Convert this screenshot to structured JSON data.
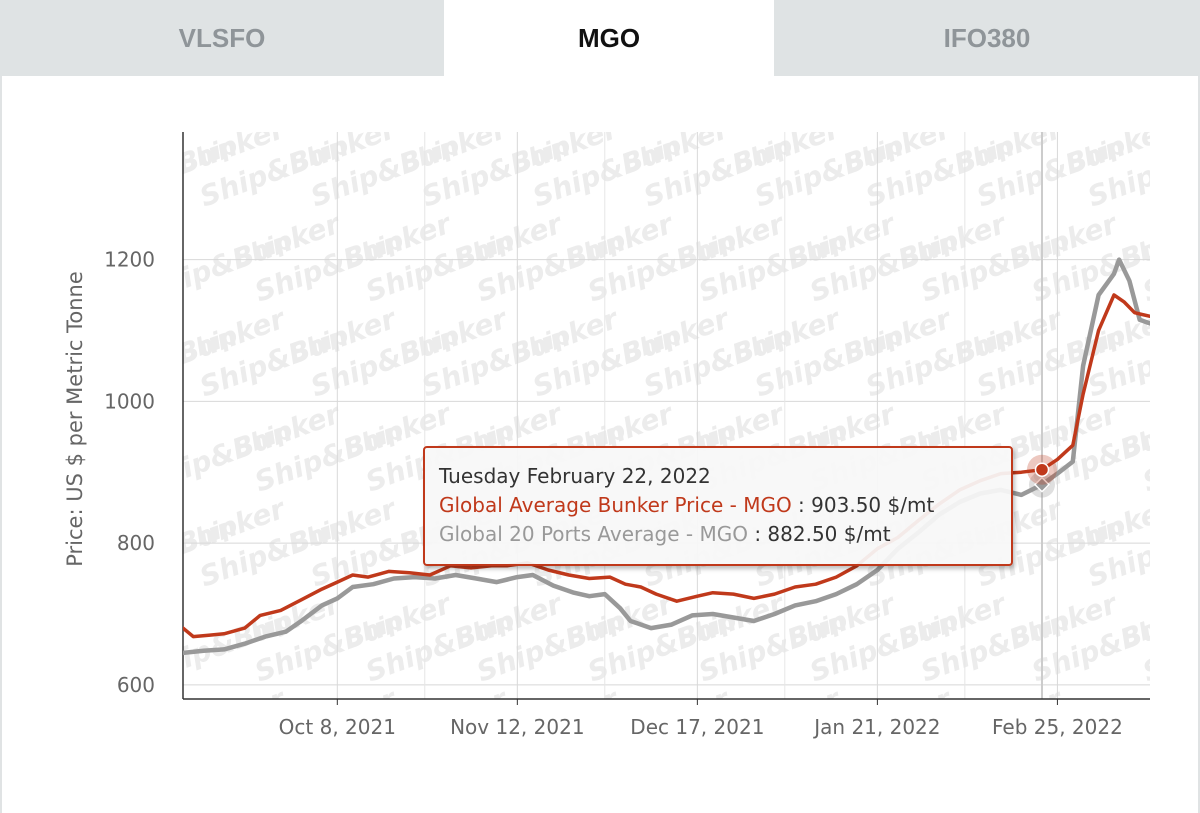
{
  "tabs": [
    {
      "label": "VLSFO",
      "active": false
    },
    {
      "label": "MGO",
      "active": true
    },
    {
      "label": "IFO380",
      "active": false
    }
  ],
  "watermark": {
    "text_top": "Ship",
    "text_bottom": "Bunker",
    "symbol": "&"
  },
  "colors": {
    "series1": "#c0391b",
    "series2": "#999999",
    "grid": "#d8d8d8",
    "crosshair": "#cccccc"
  },
  "tooltip": {
    "date": "Tuesday February 22, 2022",
    "series1_label": "Global Average Bunker Price - MGO",
    "series1_value": "903.50 $/mt",
    "series2_label": "Global 20 Ports Average - MGO",
    "series2_value": "882.50 $/mt",
    "separator": ":"
  },
  "chart_data": {
    "type": "line",
    "ylabel": "Price: US $ per Metric Tonne",
    "xlabel": "",
    "ylim": [
      580,
      1380
    ],
    "yticks": [
      600,
      800,
      1000,
      1200
    ],
    "xlim": [
      "2021-09-08",
      "2022-03-15"
    ],
    "xticks": [
      {
        "date": "2021-10-08",
        "label": "Oct 8, 2021"
      },
      {
        "date": "2021-11-12",
        "label": "Nov 12, 2021"
      },
      {
        "date": "2021-12-17",
        "label": "Dec 17, 2021"
      },
      {
        "date": "2022-01-21",
        "label": "Jan 21, 2022"
      },
      {
        "date": "2022-02-25",
        "label": "Feb 25, 2022"
      }
    ],
    "grid": true,
    "highlight_date": "2022-02-22",
    "series": [
      {
        "name": "Global Average Bunker Price - MGO",
        "color": "#c0391b",
        "points": [
          [
            "2021-09-08",
            680
          ],
          [
            "2021-09-10",
            668
          ],
          [
            "2021-09-13",
            670
          ],
          [
            "2021-09-16",
            672
          ],
          [
            "2021-09-20",
            680
          ],
          [
            "2021-09-23",
            698
          ],
          [
            "2021-09-27",
            705
          ],
          [
            "2021-10-01",
            720
          ],
          [
            "2021-10-05",
            735
          ],
          [
            "2021-10-08",
            745
          ],
          [
            "2021-10-11",
            755
          ],
          [
            "2021-10-14",
            752
          ],
          [
            "2021-10-18",
            760
          ],
          [
            "2021-10-22",
            758
          ],
          [
            "2021-10-26",
            755
          ],
          [
            "2021-10-30",
            768
          ],
          [
            "2021-11-03",
            765
          ],
          [
            "2021-11-07",
            768
          ],
          [
            "2021-11-10",
            768
          ],
          [
            "2021-11-14",
            772
          ],
          [
            "2021-11-18",
            762
          ],
          [
            "2021-11-22",
            755
          ],
          [
            "2021-11-26",
            750
          ],
          [
            "2021-11-30",
            752
          ],
          [
            "2021-12-03",
            742
          ],
          [
            "2021-12-06",
            738
          ],
          [
            "2021-12-09",
            728
          ],
          [
            "2021-12-13",
            718
          ],
          [
            "2021-12-17",
            725
          ],
          [
            "2021-12-20",
            730
          ],
          [
            "2021-12-24",
            728
          ],
          [
            "2021-12-28",
            722
          ],
          [
            "2022-01-01",
            728
          ],
          [
            "2022-01-05",
            738
          ],
          [
            "2022-01-09",
            742
          ],
          [
            "2022-01-13",
            752
          ],
          [
            "2022-01-17",
            768
          ],
          [
            "2022-01-21",
            792
          ],
          [
            "2022-01-25",
            808
          ],
          [
            "2022-01-29",
            832
          ],
          [
            "2022-02-02",
            855
          ],
          [
            "2022-02-06",
            875
          ],
          [
            "2022-02-10",
            888
          ],
          [
            "2022-02-14",
            898
          ],
          [
            "2022-02-18",
            900
          ],
          [
            "2022-02-22",
            903.5
          ],
          [
            "2022-02-25",
            918
          ],
          [
            "2022-02-28",
            938
          ],
          [
            "2022-03-02",
            1010
          ],
          [
            "2022-03-05",
            1100
          ],
          [
            "2022-03-08",
            1150
          ],
          [
            "2022-03-10",
            1140
          ],
          [
            "2022-03-12",
            1125
          ],
          [
            "2022-03-15",
            1120
          ]
        ]
      },
      {
        "name": "Global 20 Ports Average - MGO",
        "color": "#999999",
        "points": [
          [
            "2021-09-08",
            645
          ],
          [
            "2021-09-12",
            648
          ],
          [
            "2021-09-16",
            650
          ],
          [
            "2021-09-20",
            658
          ],
          [
            "2021-09-24",
            668
          ],
          [
            "2021-09-28",
            675
          ],
          [
            "2021-10-01",
            690
          ],
          [
            "2021-10-05",
            712
          ],
          [
            "2021-10-08",
            722
          ],
          [
            "2021-10-11",
            738
          ],
          [
            "2021-10-15",
            742
          ],
          [
            "2021-10-19",
            750
          ],
          [
            "2021-10-23",
            752
          ],
          [
            "2021-10-27",
            750
          ],
          [
            "2021-10-31",
            755
          ],
          [
            "2021-11-04",
            750
          ],
          [
            "2021-11-08",
            745
          ],
          [
            "2021-11-12",
            752
          ],
          [
            "2021-11-15",
            755
          ],
          [
            "2021-11-19",
            740
          ],
          [
            "2021-11-23",
            730
          ],
          [
            "2021-11-26",
            725
          ],
          [
            "2021-11-29",
            728
          ],
          [
            "2021-12-02",
            708
          ],
          [
            "2021-12-04",
            690
          ],
          [
            "2021-12-08",
            680
          ],
          [
            "2021-12-12",
            685
          ],
          [
            "2021-12-16",
            698
          ],
          [
            "2021-12-20",
            700
          ],
          [
            "2021-12-24",
            695
          ],
          [
            "2021-12-28",
            690
          ],
          [
            "2022-01-01",
            700
          ],
          [
            "2022-01-05",
            712
          ],
          [
            "2022-01-09",
            718
          ],
          [
            "2022-01-13",
            728
          ],
          [
            "2022-01-17",
            742
          ],
          [
            "2022-01-21",
            762
          ],
          [
            "2022-01-25",
            792
          ],
          [
            "2022-01-29",
            815
          ],
          [
            "2022-02-02",
            840
          ],
          [
            "2022-02-06",
            858
          ],
          [
            "2022-02-10",
            870
          ],
          [
            "2022-02-14",
            875
          ],
          [
            "2022-02-18",
            868
          ],
          [
            "2022-02-22",
            882.5
          ],
          [
            "2022-02-25",
            898
          ],
          [
            "2022-02-28",
            915
          ],
          [
            "2022-03-02",
            1050
          ],
          [
            "2022-03-05",
            1150
          ],
          [
            "2022-03-08",
            1180
          ],
          [
            "2022-03-09",
            1200
          ],
          [
            "2022-03-11",
            1170
          ],
          [
            "2022-03-13",
            1115
          ],
          [
            "2022-03-15",
            1110
          ]
        ]
      }
    ]
  }
}
